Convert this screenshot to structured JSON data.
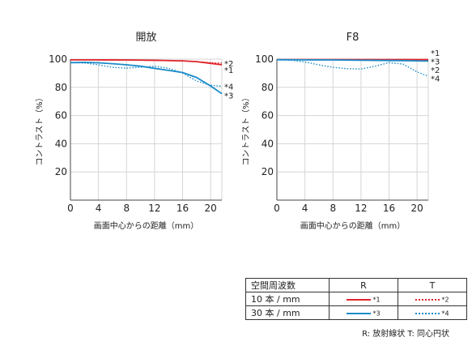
{
  "chart_data": [
    {
      "type": "line",
      "title": "開放",
      "xlabel": "画面中心からの距離（mm）",
      "ylabel": "コントラスト（%）",
      "xlim": [
        0,
        21.6
      ],
      "ylim": [
        0,
        100
      ],
      "xticks": [
        0,
        4,
        8,
        12,
        16,
        20
      ],
      "yticks": [
        20,
        40,
        60,
        80,
        100
      ],
      "grid": true,
      "series": [
        {
          "name": "*1",
          "style": "solid",
          "color": "#e0242b",
          "x": [
            0,
            4,
            8,
            12,
            16,
            18,
            20,
            21.6
          ],
          "y": [
            99.5,
            99.5,
            99.4,
            99.2,
            98.8,
            98.2,
            97,
            96
          ]
        },
        {
          "name": "*2",
          "style": "dotted",
          "color": "#e0242b",
          "x": [
            0,
            4,
            8,
            12,
            16,
            18,
            20,
            21.6
          ],
          "y": [
            99.5,
            99.4,
            99.3,
            99,
            98.8,
            98.3,
            97.5,
            97.2
          ]
        },
        {
          "name": "*3",
          "style": "solid",
          "color": "#1a8bc9",
          "x": [
            0,
            2,
            4,
            6,
            8,
            10,
            12,
            14,
            16,
            18,
            20,
            21.6
          ],
          "y": [
            97.5,
            97.7,
            97.4,
            96.8,
            96,
            95,
            93.5,
            92,
            90.5,
            87,
            81,
            75.5
          ]
        },
        {
          "name": "*4",
          "style": "dotted",
          "color": "#1a8bc9",
          "x": [
            0,
            2,
            4,
            6,
            8,
            10,
            12,
            14,
            16,
            18,
            20,
            21.6
          ],
          "y": [
            97.5,
            97.3,
            96,
            94.2,
            93.6,
            94.3,
            95,
            93.5,
            90.2,
            84.5,
            81.5,
            80.8
          ]
        }
      ],
      "labels": [
        {
          "text": "*2",
          "x": 21.6,
          "y": 97.2
        },
        {
          "text": "*1",
          "x": 21.6,
          "y": 92.5
        },
        {
          "text": "*4",
          "x": 21.6,
          "y": 80.8
        },
        {
          "text": "*3",
          "x": 21.6,
          "y": 74.5
        }
      ]
    },
    {
      "type": "line",
      "title": "F8",
      "xlabel": "画面中心からの距離（mm）",
      "ylabel": "コントラスト（%）",
      "xlim": [
        0,
        21.6
      ],
      "ylim": [
        0,
        100
      ],
      "xticks": [
        0,
        4,
        8,
        12,
        16,
        20
      ],
      "yticks": [
        20,
        40,
        60,
        80,
        100
      ],
      "grid": true,
      "series": [
        {
          "name": "*1",
          "style": "solid",
          "color": "#e0242b",
          "x": [
            0,
            4,
            8,
            12,
            16,
            20,
            21.6
          ],
          "y": [
            99.7,
            99.7,
            99.7,
            99.7,
            99.7,
            99.7,
            99.7
          ]
        },
        {
          "name": "*2",
          "style": "dotted",
          "color": "#e0242b",
          "x": [
            0,
            4,
            8,
            12,
            16,
            20,
            21.6
          ],
          "y": [
            99.6,
            99.6,
            99.6,
            99.6,
            99.5,
            99.3,
            99.2
          ]
        },
        {
          "name": "*3",
          "style": "solid",
          "color": "#1a8bc9",
          "x": [
            0,
            4,
            8,
            12,
            16,
            20,
            21.6
          ],
          "y": [
            99.6,
            99.5,
            99.4,
            99.2,
            99,
            98.8,
            98.6
          ]
        },
        {
          "name": "*4",
          "style": "dotted",
          "color": "#1a8bc9",
          "x": [
            0,
            2,
            4,
            6,
            8,
            10,
            12,
            14,
            16,
            18,
            20,
            21.6
          ],
          "y": [
            99.5,
            99.2,
            98,
            96,
            94.2,
            93.3,
            93,
            95,
            97.5,
            96.5,
            91,
            87.8
          ]
        }
      ],
      "labels": [
        {
          "text": "*1",
          "x": 21.6,
          "y": 104.5
        },
        {
          "text": "*3",
          "x": 21.6,
          "y": 98.5
        },
        {
          "text": "*2",
          "x": 21.6,
          "y": 92.5
        },
        {
          "text": "*4",
          "x": 21.6,
          "y": 86.5
        }
      ]
    }
  ],
  "legend": {
    "header_label": "空間周波数",
    "col_r": "R",
    "col_t": "T",
    "rows": [
      {
        "label": "10 本 / mm",
        "r_tag": "*1",
        "r_color": "#e0242b",
        "t_tag": "*2",
        "t_color": "#e0242b"
      },
      {
        "label": "30 本 / mm",
        "r_tag": "*3",
        "r_color": "#1a8bc9",
        "t_tag": "*4",
        "t_color": "#1a8bc9"
      }
    ],
    "note": "R: 放射線状  T: 同心円状"
  }
}
